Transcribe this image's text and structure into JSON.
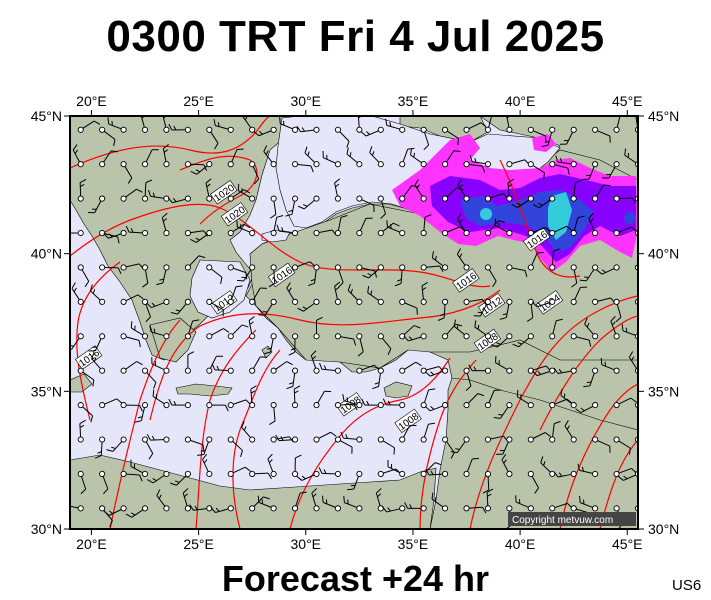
{
  "title": "0300 TRT Fri 4 Jul 2025",
  "footer": "Forecast +24 hr",
  "model_code": "US6",
  "copyright": "Copyright metvuw.com",
  "colors": {
    "sea": "#e6e6fa",
    "land": "#b9c4ab",
    "isobar": "#ff0000",
    "frame": "#000000",
    "rain_light": "#ff33ff",
    "rain_mid": "#8800ff",
    "rain_heavy": "#3344dd",
    "rain_extreme": "#33ccdd"
  },
  "axes": {
    "lon_range": [
      19,
      45.5
    ],
    "lat_range": [
      30,
      45
    ],
    "lon_ticks": [
      {
        "value": 20,
        "label": "20°E"
      },
      {
        "value": 25,
        "label": "25°E"
      },
      {
        "value": 30,
        "label": "30°E"
      },
      {
        "value": 35,
        "label": "35°E"
      },
      {
        "value": 40,
        "label": "40°E"
      },
      {
        "value": 45,
        "label": "45°E"
      }
    ],
    "lat_ticks": [
      {
        "value": 45,
        "label": "45°N"
      },
      {
        "value": 40,
        "label": "40°N"
      },
      {
        "value": 35,
        "label": "35°N"
      },
      {
        "value": 30,
        "label": "30°N"
      }
    ]
  },
  "isobar_labels": [
    {
      "text": "1020",
      "lon": 26.7,
      "lat": 41.4
    },
    {
      "text": "1020",
      "lon": 26.2,
      "lat": 42.2
    },
    {
      "text": "1016",
      "lon": 28.9,
      "lat": 39.2
    },
    {
      "text": "1012",
      "lon": 26.2,
      "lat": 38.2
    },
    {
      "text": "1016",
      "lon": 19.9,
      "lat": 36.2
    },
    {
      "text": "1008",
      "lon": 32.1,
      "lat": 34.5
    },
    {
      "text": "1008",
      "lon": 34.8,
      "lat": 33.9
    },
    {
      "text": "1016",
      "lon": 37.5,
      "lat": 39.0
    },
    {
      "text": "1012",
      "lon": 38.7,
      "lat": 38.1
    },
    {
      "text": "1008",
      "lon": 38.5,
      "lat": 36.8
    },
    {
      "text": "1004",
      "lon": 41.4,
      "lat": 38.2
    },
    {
      "text": "1016",
      "lon": 40.8,
      "lat": 40.5
    }
  ]
}
